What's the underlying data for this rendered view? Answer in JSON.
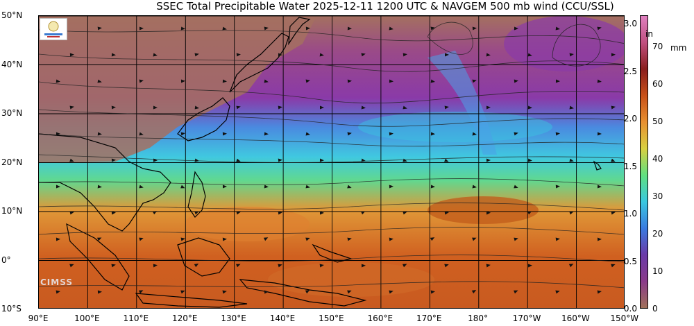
{
  "title": "SSEC Total Precipitable Water  2025-12-11 1200 UTC & NAVGEM 500 mb wind (CCU/SSL)",
  "lat_labels": [
    "50°N",
    "40°N",
    "30°N",
    "20°N",
    "10°N",
    "0°",
    "10°S"
  ],
  "lon_labels": [
    "90°E",
    "100°E",
    "110°E",
    "120°E",
    "130°E",
    "140°E",
    "150°E",
    "160°E",
    "170°E",
    "180°",
    "170°W",
    "160°W",
    "150°W"
  ],
  "colorbar": {
    "unit_in": "in",
    "unit_mm": "mm",
    "in_ticks": [
      "3.0",
      "2.5",
      "2.0",
      "1.5",
      "1.0",
      "0.5",
      "0.0"
    ],
    "mm_ticks": [
      "70",
      "60",
      "50",
      "40",
      "30",
      "20",
      "10",
      "0"
    ],
    "colors": [
      "#a0705a",
      "#8a3a8a",
      "#6a3aa8",
      "#3a7ae0",
      "#3ac8e0",
      "#60e080",
      "#d8d040",
      "#e89030",
      "#c85018",
      "#8a1e1e",
      "#c05080",
      "#e080c0"
    ]
  },
  "watermark": "CIMSS",
  "logo": "ssec-logo"
}
